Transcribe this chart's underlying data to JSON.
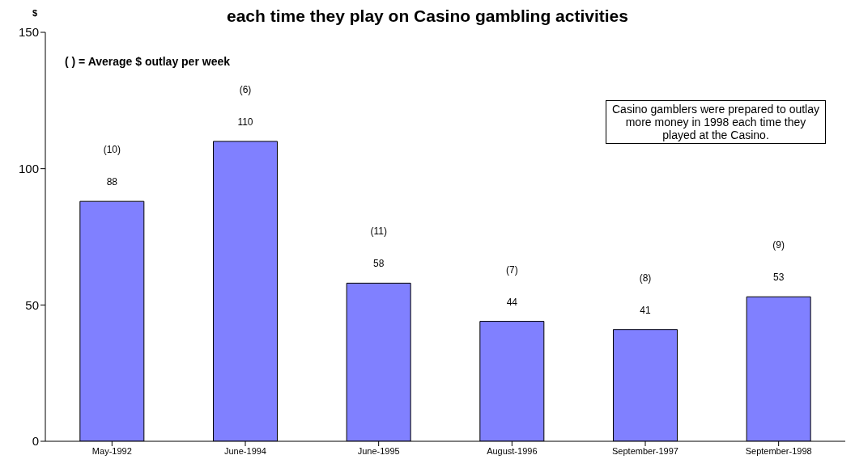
{
  "chart_data": {
    "type": "bar",
    "title": "each time they play on Casino gambling activities",
    "ylabel": "$",
    "categories": [
      "May-1992",
      "June-1994",
      "June-1995",
      "August-1996",
      "September-1997",
      "September-1998"
    ],
    "values": [
      88,
      110,
      58,
      44,
      41,
      53
    ],
    "color": "#8080ff",
    "data_labels": true,
    "ylim": [
      0,
      150
    ],
    "yticks": [
      0,
      50,
      100,
      150
    ],
    "grid": false,
    "legend": false,
    "annotations": [
      "( ) = Average $ outlay per week",
      "Casino gamblers were prepared to outlay more money in 1998 each time they played at the Casino.",
      "(10)",
      "(6)",
      "(11)",
      "(7)",
      "(8)",
      "(9)"
    ]
  }
}
